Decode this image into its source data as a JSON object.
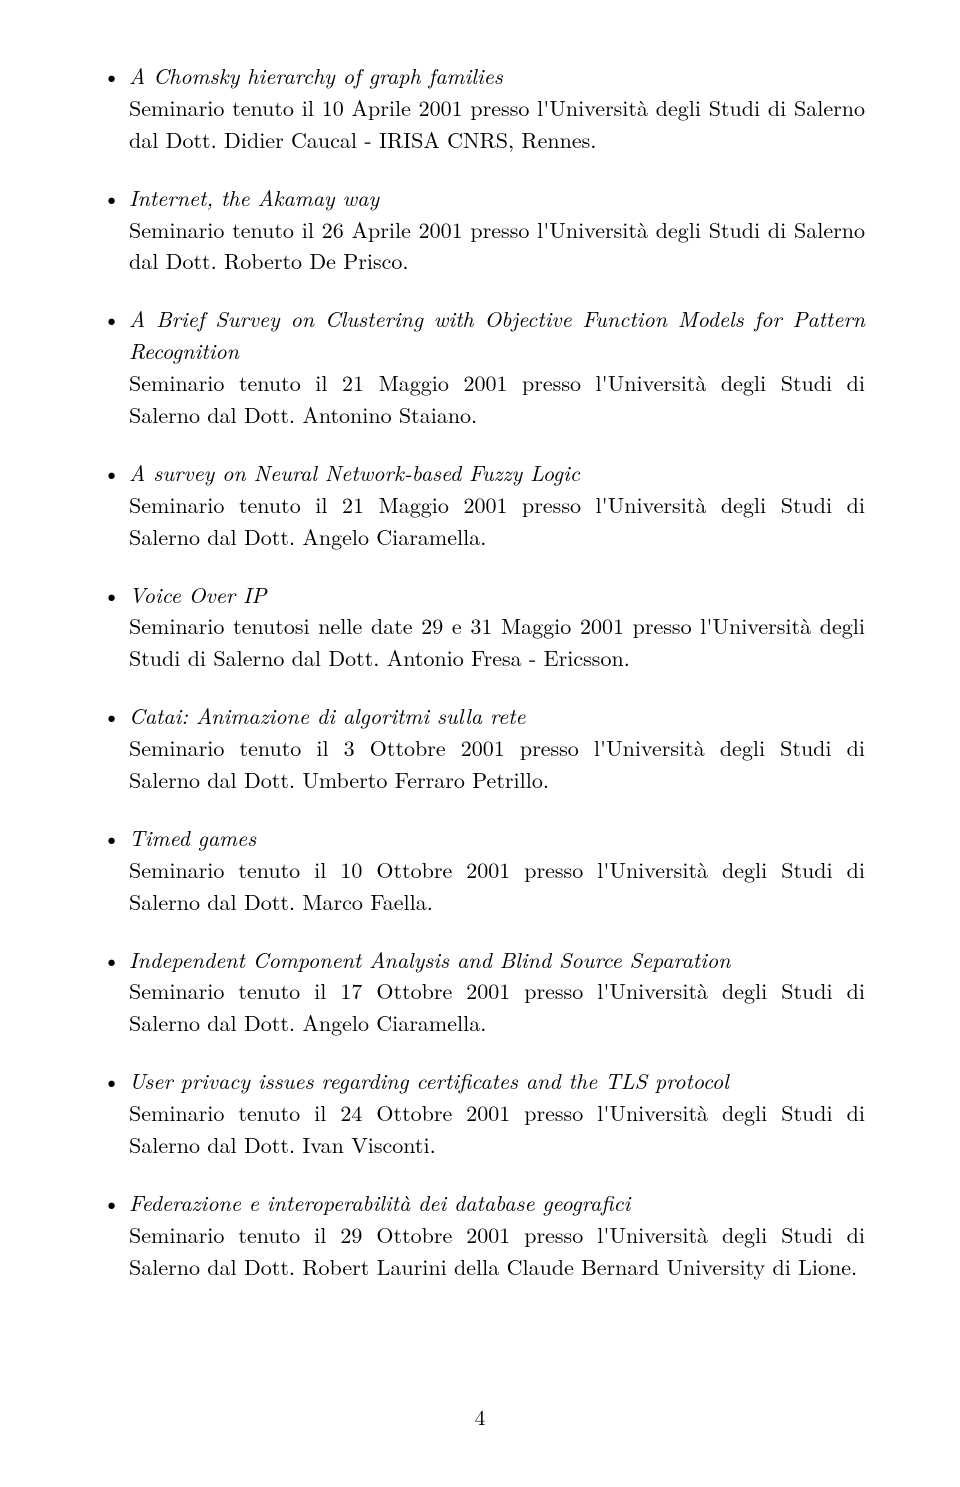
{
  "page_number": "4",
  "items": [
    {
      "title": "A Chomsky hierarchy of graph families",
      "desc": "Seminario tenuto il 10 Aprile 2001 presso l'Università degli Studi di Salerno dal Dott. Didier Caucal - IRISA CNRS, Rennes."
    },
    {
      "title": "Internet, the Akamay way",
      "desc": "Seminario tenuto il 26 Aprile 2001 presso l'Università degli Studi di Salerno dal Dott. Roberto De Prisco."
    },
    {
      "title": "A Brief Survey on Clustering with Objective Function Models for Pattern Recognition",
      "desc": "Seminario tenuto il 21 Maggio 2001 presso l'Università degli Studi di Salerno dal Dott. Antonino Staiano."
    },
    {
      "title": "A survey on Neural Network-based Fuzzy Logic",
      "desc": "Seminario tenuto il 21 Maggio 2001 presso l'Università degli Studi di Salerno dal Dott. Angelo Ciaramella."
    },
    {
      "title": "Voice Over IP",
      "desc": "Seminario tenutosi nelle date 29 e 31 Maggio 2001 presso l'Università degli Studi di Salerno dal Dott. Antonio Fresa - Ericsson."
    },
    {
      "title": "Catai: Animazione di algoritmi sulla rete",
      "desc": "Seminario tenuto il 3 Ottobre 2001 presso l'Università degli Studi di Salerno dal Dott. Umberto Ferraro Petrillo."
    },
    {
      "title": "Timed games",
      "desc": "Seminario tenuto il 10 Ottobre 2001 presso l'Università degli Studi di Salerno dal Dott. Marco Faella."
    },
    {
      "title": "Independent Component Analysis and Blind Source Separation",
      "desc": "Seminario tenuto il 17 Ottobre 2001 presso l'Università degli Studi di Salerno dal Dott. Angelo Ciaramella."
    },
    {
      "title": "User privacy issues regarding certificates and the TLS protocol",
      "desc": "Seminario tenuto il 24 Ottobre 2001 presso l'Università degli Studi di Salerno dal Dott. Ivan Visconti."
    },
    {
      "title": "Federazione e interoperabilità dei database geografici",
      "desc": "Seminario tenuto il 29 Ottobre 2001 presso l'Università degli Studi di Salerno dal Dott. Robert Laurini della Claude Bernard University di Lione."
    }
  ]
}
